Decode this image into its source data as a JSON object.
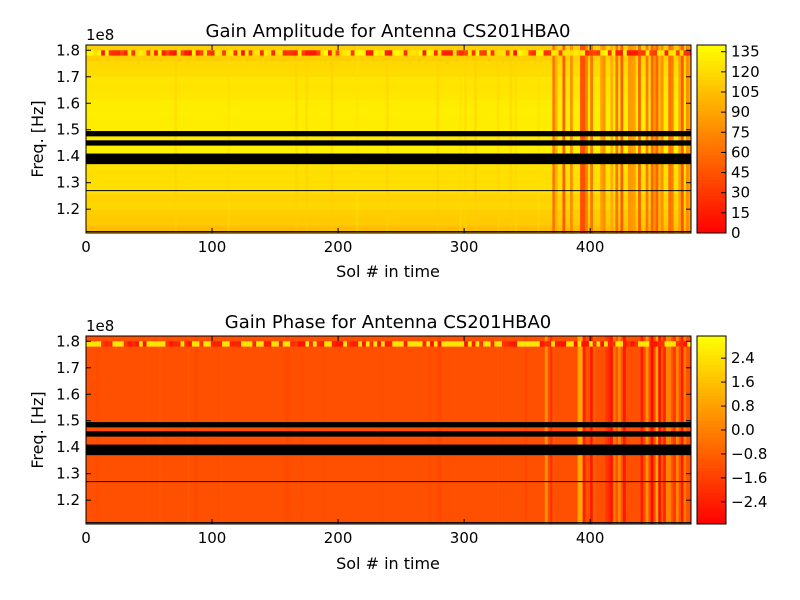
{
  "chart_data": [
    {
      "type": "heatmap",
      "title": "Gain Amplitude for Antenna CS201HBA0",
      "xlabel": "Sol # in time",
      "ylabel": "Freq. [Hz]",
      "y_multiplier_label": "1e8",
      "xlim": [
        0,
        480
      ],
      "ylim": [
        1.11,
        1.82
      ],
      "x_ticks": [
        "0",
        "100",
        "200",
        "300",
        "400"
      ],
      "x_tick_values": [
        0,
        100,
        200,
        300,
        400
      ],
      "y_ticks": [
        "1.2",
        "1.3",
        "1.4",
        "1.5",
        "1.6",
        "1.7",
        "1.8"
      ],
      "y_tick_values": [
        1.2,
        1.3,
        1.4,
        1.5,
        1.6,
        1.7,
        1.8
      ],
      "colormap": "autumn",
      "color_range": [
        0,
        140
      ],
      "colorbar_ticks": [
        "0",
        "15",
        "30",
        "45",
        "60",
        "75",
        "90",
        "105",
        "120",
        "135"
      ],
      "colorbar_tick_values": [
        0,
        15,
        30,
        45,
        60,
        75,
        90,
        105,
        120,
        135
      ],
      "flagged_bands_freq": [
        [
          1.475,
          1.495
        ],
        [
          1.44,
          1.46
        ],
        [
          1.37,
          1.41
        ]
      ],
      "flagged_lines_freq": [
        1.27,
        1.115
      ],
      "noisy_band_freq": [
        1.78,
        1.8
      ],
      "typical_value": 130,
      "noisy_time_start": 360
    },
    {
      "type": "heatmap",
      "title": "Gain Phase for Antenna CS201HBA0",
      "xlabel": "Sol # in time",
      "ylabel": "Freq. [Hz]",
      "y_multiplier_label": "1e8",
      "xlim": [
        0,
        480
      ],
      "ylim": [
        1.11,
        1.82
      ],
      "x_ticks": [
        "0",
        "100",
        "200",
        "300",
        "400"
      ],
      "x_tick_values": [
        0,
        100,
        200,
        300,
        400
      ],
      "y_ticks": [
        "1.2",
        "1.3",
        "1.4",
        "1.5",
        "1.6",
        "1.7",
        "1.8"
      ],
      "y_tick_values": [
        1.2,
        1.3,
        1.4,
        1.5,
        1.6,
        1.7,
        1.8
      ],
      "colormap": "autumn",
      "color_range": [
        -3.14,
        3.14
      ],
      "colorbar_ticks": [
        "−2.4",
        "−1.6",
        "−0.8",
        "0.0",
        "0.8",
        "1.6",
        "2.4"
      ],
      "colorbar_tick_values": [
        -2.4,
        -1.6,
        -0.8,
        0.0,
        0.8,
        1.6,
        2.4
      ],
      "flagged_bands_freq": [
        [
          1.475,
          1.495
        ],
        [
          1.44,
          1.46
        ],
        [
          1.37,
          1.41
        ]
      ],
      "flagged_lines_freq": [
        1.27,
        1.115
      ],
      "noisy_band_freq": [
        1.78,
        1.8
      ],
      "typical_value": -1.2,
      "noisy_time_start": 360
    }
  ]
}
